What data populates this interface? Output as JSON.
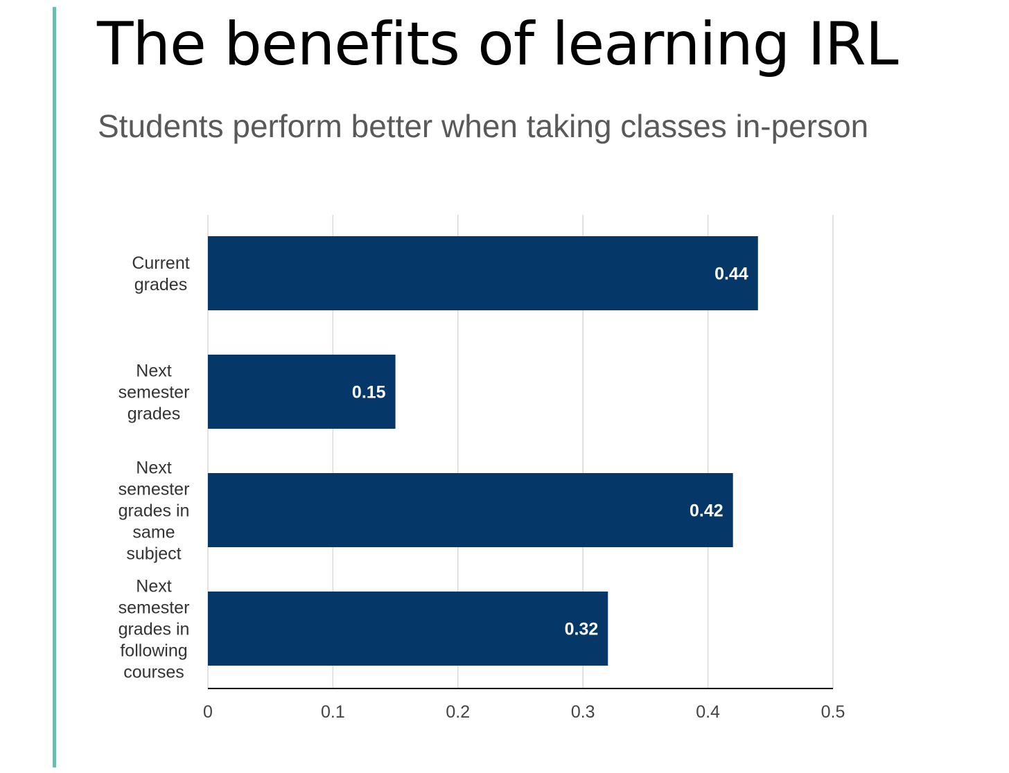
{
  "page": {
    "title": "The benefits of learning IRL",
    "subtitle": "Students perform better when taking classes in-person"
  },
  "colors": {
    "accent": "#6cbdb0",
    "bar": "#053769",
    "grid": "#d9d9d9",
    "axis": "#000000"
  },
  "chart_data": {
    "type": "bar",
    "orientation": "horizontal",
    "title": "",
    "xlabel": "",
    "ylabel": "",
    "categories": [
      [
        "Current",
        "grades"
      ],
      [
        "Next",
        "semester",
        "grades"
      ],
      [
        "Next",
        "semester",
        "grades in",
        "same",
        "subject"
      ],
      [
        "Next",
        "semester",
        "grades in",
        "following",
        "courses"
      ]
    ],
    "values": [
      0.44,
      0.15,
      0.42,
      0.32
    ],
    "data_labels": [
      "0.44",
      "0.15",
      "0.42",
      "0.32"
    ],
    "xlim": [
      0,
      0.5
    ],
    "ticks": [
      0,
      0.1,
      0.2,
      0.3,
      0.4,
      0.5
    ],
    "tick_labels": [
      "0",
      "0.1",
      "0.2",
      "0.3",
      "0.4",
      "0.5"
    ],
    "grid": true,
    "legend": "none"
  }
}
